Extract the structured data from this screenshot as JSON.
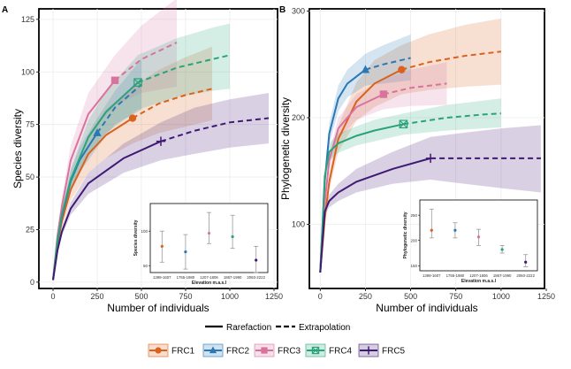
{
  "colors": {
    "FRC1": "#d9621e",
    "FRC2": "#2a78b5",
    "FRC3": "#d8739e",
    "FRC4": "#2aa37b",
    "FRC5": "#3f1a73"
  },
  "legend": {
    "method": [
      "Rarefaction",
      "Extrapolation"
    ],
    "groups": [
      "FRC1",
      "FRC2",
      "FRC3",
      "FRC4",
      "FRC5"
    ],
    "markers": {
      "FRC1": "circle",
      "FRC2": "triangle",
      "FRC3": "square",
      "FRC4": "xbox",
      "FRC5": "plus"
    }
  },
  "chart_data": [
    {
      "panel": "A",
      "type": "line",
      "xlabel": "Number of individuals",
      "ylabel": "Species diversity",
      "xlim": [
        -80,
        1270
      ],
      "ylim": [
        -3,
        130
      ],
      "xticks": [
        0,
        250,
        500,
        750,
        1000,
        1250
      ],
      "yticks": [
        0,
        25,
        50,
        75,
        100,
        125
      ],
      "series": [
        {
          "name": "FRC1",
          "n_obs": 450,
          "obs": 78,
          "x": [
            0,
            25,
            50,
            100,
            200,
            300,
            450,
            600,
            750,
            900
          ],
          "y": [
            1,
            18,
            29,
            44,
            61,
            70,
            78,
            85,
            89,
            92
          ],
          "lower": [
            1,
            16,
            26,
            39,
            52,
            59,
            66,
            71,
            74,
            77
          ],
          "upper": [
            1,
            20,
            32,
            49,
            70,
            82,
            93,
            101,
            107,
            112
          ]
        },
        {
          "name": "FRC2",
          "n_obs": 250,
          "obs": 71,
          "x": [
            0,
            25,
            50,
            100,
            150,
            250,
            350,
            500
          ],
          "y": [
            1,
            19,
            31,
            48,
            58,
            71,
            83,
            94
          ],
          "lower": [
            1,
            17,
            28,
            43,
            52,
            64,
            75,
            82
          ],
          "upper": [
            1,
            21,
            34,
            53,
            64,
            78,
            91,
            106
          ]
        },
        {
          "name": "FRC3",
          "n_obs": 350,
          "obs": 96,
          "x": [
            0,
            25,
            50,
            100,
            200,
            350,
            500,
            700
          ],
          "y": [
            1,
            22,
            36,
            58,
            80,
            96,
            106,
            114
          ],
          "lower": [
            1,
            20,
            32,
            51,
            70,
            84,
            90,
            93
          ],
          "upper": [
            1,
            24,
            40,
            65,
            90,
            108,
            122,
            135
          ]
        },
        {
          "name": "FRC4",
          "n_obs": 480,
          "obs": 95,
          "x": [
            0,
            25,
            50,
            100,
            200,
            300,
            480,
            700,
            900,
            1000
          ],
          "y": [
            1,
            20,
            32,
            49,
            69,
            81,
            95,
            102,
            106,
            108
          ],
          "lower": [
            1,
            18,
            29,
            44,
            61,
            71,
            82,
            88,
            91,
            92
          ],
          "upper": [
            1,
            22,
            35,
            54,
            77,
            91,
            108,
            116,
            121,
            123
          ]
        },
        {
          "name": "FRC5",
          "n_obs": 610,
          "obs": 67,
          "x": [
            0,
            25,
            50,
            100,
            200,
            400,
            610,
            800,
            1000,
            1220
          ],
          "y": [
            1,
            15,
            24,
            35,
            47,
            59,
            67,
            72,
            76,
            78
          ],
          "lower": [
            1,
            14,
            22,
            32,
            42,
            52,
            58,
            61,
            64,
            66
          ],
          "upper": [
            1,
            16,
            26,
            38,
            52,
            66,
            76,
            83,
            87,
            90
          ]
        }
      ]
    },
    {
      "panel": "A-inset",
      "type": "scatter",
      "ylabel": "Species diversity",
      "xlabel": "Elevation m.a.s.l",
      "yticks": [
        50,
        100
      ],
      "ylim": [
        40,
        140
      ],
      "categories": [
        "1399-1607",
        "1755-1980",
        "1207-1806",
        "1867-1990",
        "2060-2222"
      ],
      "series": [
        {
          "name": "FRC1",
          "mean": 78,
          "low": 55,
          "high": 100
        },
        {
          "name": "FRC2",
          "mean": 70,
          "low": 45,
          "high": 95
        },
        {
          "name": "FRC3",
          "mean": 97,
          "low": 82,
          "high": 127
        },
        {
          "name": "FRC4",
          "mean": 92,
          "low": 75,
          "high": 123
        },
        {
          "name": "FRC5",
          "mean": 58,
          "low": 40,
          "high": 78
        }
      ]
    },
    {
      "panel": "B",
      "type": "line",
      "xlabel": "Number of individuals",
      "ylabel": "Phylogenetic diversity",
      "xlim": [
        -60,
        1240
      ],
      "ylim": [
        40,
        302
      ],
      "xticks": [
        0,
        250,
        500,
        750,
        1000,
        1250
      ],
      "yticks": [
        100,
        200,
        300
      ],
      "series": [
        {
          "name": "FRC1",
          "n_obs": 450,
          "obs": 245,
          "x": [
            0,
            25,
            50,
            100,
            200,
            300,
            450,
            600,
            800,
            1000
          ],
          "y": [
            55,
            105,
            140,
            180,
            215,
            232,
            245,
            252,
            258,
            262
          ],
          "lower": [
            55,
            100,
            132,
            168,
            197,
            210,
            222,
            226,
            229,
            231
          ],
          "upper": [
            55,
            110,
            148,
            192,
            233,
            254,
            268,
            278,
            287,
            293
          ]
        },
        {
          "name": "FRC2",
          "n_obs": 250,
          "obs": 245,
          "x": [
            0,
            25,
            50,
            100,
            150,
            250,
            350,
            500
          ],
          "y": [
            55,
            140,
            185,
            218,
            232,
            245,
            250,
            256
          ],
          "lower": [
            55,
            132,
            175,
            206,
            219,
            230,
            232,
            235
          ],
          "upper": [
            55,
            148,
            195,
            230,
            245,
            260,
            268,
            278
          ]
        },
        {
          "name": "FRC3",
          "n_obs": 350,
          "obs": 222,
          "x": [
            0,
            25,
            50,
            100,
            200,
            350,
            500,
            700
          ],
          "y": [
            55,
            120,
            160,
            190,
            210,
            222,
            228,
            232
          ],
          "lower": [
            55,
            114,
            152,
            180,
            198,
            208,
            211,
            212
          ],
          "upper": [
            55,
            126,
            168,
            200,
            222,
            236,
            245,
            252
          ]
        },
        {
          "name": "FRC4",
          "n_obs": 460,
          "obs": 194,
          "x": [
            0,
            25,
            50,
            100,
            200,
            300,
            460,
            700,
            900,
            1000
          ],
          "y": [
            55,
            145,
            168,
            176,
            183,
            188,
            194,
            200,
            203,
            204
          ],
          "lower": [
            55,
            140,
            160,
            167,
            174,
            178,
            184,
            188,
            190,
            191
          ],
          "upper": [
            55,
            150,
            176,
            185,
            192,
            198,
            204,
            212,
            216,
            218
          ]
        },
        {
          "name": "FRC5",
          "n_obs": 610,
          "obs": 162,
          "x": [
            0,
            25,
            50,
            100,
            200,
            400,
            610,
            800,
            1000,
            1220
          ],
          "y": [
            55,
            112,
            122,
            130,
            140,
            152,
            162,
            162,
            162,
            162
          ],
          "lower": [
            55,
            108,
            116,
            122,
            130,
            138,
            142,
            138,
            134,
            130
          ],
          "upper": [
            55,
            116,
            128,
            138,
            152,
            168,
            182,
            186,
            190,
            193
          ]
        }
      ]
    },
    {
      "panel": "B-inset",
      "type": "scatter",
      "ylabel": "Phylogenetic diversity",
      "xlabel": "Elevation m.a.s.l",
      "yticks": [
        150,
        200,
        250
      ],
      "ylim": [
        140,
        280
      ],
      "categories": [
        "1399-1607",
        "1755-1980",
        "1207-1806",
        "1867-1990",
        "2060-2222"
      ],
      "series": [
        {
          "name": "FRC1",
          "mean": 220,
          "low": 205,
          "high": 262
        },
        {
          "name": "FRC2",
          "mean": 220,
          "low": 205,
          "high": 235
        },
        {
          "name": "FRC3",
          "mean": 207,
          "low": 190,
          "high": 222
        },
        {
          "name": "FRC4",
          "mean": 182,
          "low": 175,
          "high": 190
        },
        {
          "name": "FRC5",
          "mean": 157,
          "low": 148,
          "high": 172
        }
      ]
    }
  ]
}
